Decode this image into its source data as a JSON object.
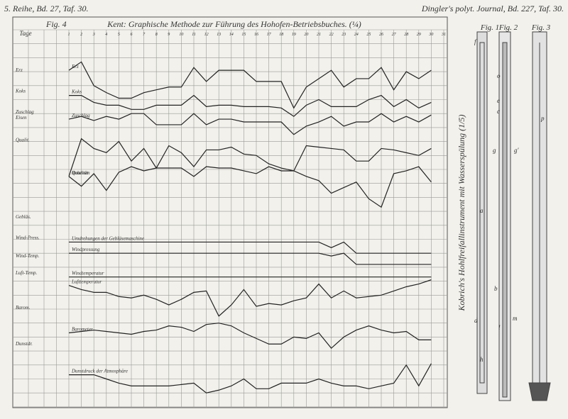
{
  "header": {
    "left": "5. Reihe, Bd. 27, Taf. 30.",
    "right": "Dingler's polyt. Journal, Bd. 227, Taf. 30.",
    "title": "Kent: Graphische Methode zur Führung des Hohofen-Betriebsbuches. (¼)"
  },
  "graph": {
    "figure": "Fig. 4",
    "days_label": "Tage",
    "days": [
      1,
      2,
      3,
      4,
      5,
      6,
      7,
      8,
      9,
      10,
      11,
      12,
      13,
      14,
      15,
      16,
      17,
      18,
      19,
      20,
      21,
      22,
      23,
      24,
      25,
      26,
      27,
      28,
      29,
      30,
      31
    ],
    "row_labels": [
      "Erz",
      "Koks",
      "Zuschlag",
      "Eisen",
      "Qualit.",
      "Gebläs.",
      "Wind-Press.",
      "Wind-Temp.",
      "Luft-Temp.",
      "Barom.",
      "Dunstdr."
    ],
    "curves": [
      {
        "label": "Erz",
        "values": [
          2.9,
          2.3,
          4.0,
          4.5,
          4.9,
          4.9,
          4.5,
          4.3,
          4.1,
          4.1,
          2.7,
          3.7,
          2.9,
          2.9,
          2.9,
          3.7,
          3.7,
          3.7,
          5.6,
          4.1,
          3.5,
          2.9,
          4.1,
          3.5,
          3.5,
          2.7,
          4.3,
          3.0,
          3.5,
          2.9
        ]
      },
      {
        "label": "Koks",
        "values": [
          4.7,
          4.7,
          5.2,
          5.4,
          5.4,
          5.7,
          5.7,
          5.4,
          5.4,
          5.4,
          4.7,
          5.5,
          5.4,
          5.4,
          5.5,
          5.5,
          5.5,
          5.6,
          6.2,
          5.4,
          5.0,
          5.5,
          5.5,
          5.5,
          5.0,
          4.7,
          5.5,
          5.0,
          5.6,
          5.2
        ]
      },
      {
        "label": "Zuschlag",
        "values": [
          6.4,
          6.2,
          6.5,
          6.2,
          6.4,
          6.0,
          6.0,
          6.8,
          6.8,
          6.8,
          6.0,
          6.8,
          6.4,
          6.4,
          6.6,
          6.6,
          6.6,
          6.6,
          7.5,
          6.9,
          6.6,
          6.2,
          6.9,
          6.6,
          6.6,
          6.0,
          6.6,
          6.2,
          6.6,
          6.1
        ]
      },
      {
        "label": "Roheisen",
        "values": [
          10.5,
          7.8,
          8.5,
          8.8,
          8.0,
          9.4,
          8.5,
          9.9,
          8.3,
          8.8,
          9.8,
          8.6,
          8.6,
          8.4,
          8.9,
          9.0,
          9.6,
          9.9,
          10.1,
          8.3,
          8.4,
          8.5,
          8.6,
          9.4,
          9.4,
          8.5,
          8.6,
          8.8,
          9.0,
          8.5
        ]
      },
      {
        "label": "Qualität",
        "values": [
          10.5,
          11.2,
          10.3,
          11.5,
          10.2,
          9.8,
          10.1,
          9.9,
          9.9,
          9.9,
          10.5,
          9.8,
          9.9,
          9.9,
          10.1,
          10.3,
          9.8,
          10.1,
          10.1,
          10.5,
          10.8,
          11.7,
          11.3,
          10.9,
          12.1,
          12.7,
          10.3,
          10.1,
          9.8,
          10.9
        ]
      },
      {
        "label": "Umdrehungen der Gebläsemaschine",
        "values": [
          15.2,
          15.2,
          15.2,
          15.2,
          15.2,
          15.2,
          15.2,
          15.2,
          15.2,
          15.2,
          15.2,
          15.2,
          15.2,
          15.2,
          15.2,
          15.2,
          15.2,
          15.2,
          15.2,
          15.2,
          15.2,
          15.6,
          15.2,
          16.0,
          16.0,
          16.0,
          16.0,
          16.0,
          16.0,
          16.0
        ]
      },
      {
        "label": "Windpressung",
        "values": [
          16.0,
          16.0,
          16.0,
          16.0,
          16.0,
          16.0,
          16.0,
          16.0,
          16.0,
          16.0,
          16.0,
          16.0,
          16.0,
          16.0,
          16.0,
          16.0,
          16.0,
          16.0,
          16.0,
          16.0,
          16.0,
          16.2,
          16.0,
          16.8,
          16.8,
          16.8,
          16.8,
          16.8,
          16.8,
          16.8
        ]
      },
      {
        "label": "Windtemperatur",
        "values": [
          17.7,
          17.7,
          17.7,
          17.7,
          17.7,
          17.7,
          17.7,
          17.7,
          17.7,
          17.7,
          17.7,
          17.7,
          17.7,
          17.7,
          17.7,
          17.7,
          17.7,
          17.7,
          17.7,
          17.7,
          17.7,
          17.7,
          17.7,
          17.7,
          17.7,
          17.7,
          17.7,
          17.7,
          17.7,
          17.7
        ]
      },
      {
        "label": "Lufttemperatur",
        "values": [
          18.3,
          18.6,
          18.8,
          18.8,
          19.1,
          19.2,
          19.0,
          19.3,
          19.7,
          19.3,
          18.8,
          18.7,
          20.5,
          19.7,
          18.6,
          19.8,
          19.6,
          19.7,
          19.4,
          19.2,
          18.2,
          19.2,
          18.7,
          19.2,
          19.1,
          19.0,
          18.7,
          18.4,
          18.2,
          17.9
        ]
      },
      {
        "label": "Barometer",
        "values": [
          21.7,
          21.6,
          21.5,
          21.6,
          21.7,
          21.8,
          21.6,
          21.5,
          21.2,
          21.3,
          21.6,
          21.1,
          21.0,
          21.2,
          21.7,
          22.1,
          22.5,
          22.5,
          22.0,
          22.1,
          21.7,
          22.8,
          22.0,
          21.5,
          21.2,
          21.5,
          21.7,
          21.6,
          22.2,
          22.2
        ]
      },
      {
        "label": "Dunstdruck der Atmosphäre",
        "values": [
          24.7,
          24.7,
          24.7,
          25.0,
          25.3,
          25.5,
          25.5,
          25.5,
          25.5,
          25.4,
          25.3,
          26.0,
          25.8,
          25.5,
          25.0,
          25.7,
          25.7,
          25.3,
          25.3,
          25.3,
          25.0,
          25.3,
          25.5,
          25.5,
          25.7,
          25.5,
          25.3,
          24.0,
          25.5,
          23.9
        ]
      }
    ]
  },
  "figures": {
    "captions": [
      "Fig. 1",
      "Fig. 2",
      "Fig. 3"
    ],
    "side_title": "Kobrich's Hohlfreifallinstrument mit Wasserspülung (1/5)",
    "letters": [
      "f",
      "o",
      "e",
      "c",
      "g",
      "a",
      "b",
      "d",
      "h",
      "l",
      "m",
      "p",
      "g'"
    ]
  }
}
